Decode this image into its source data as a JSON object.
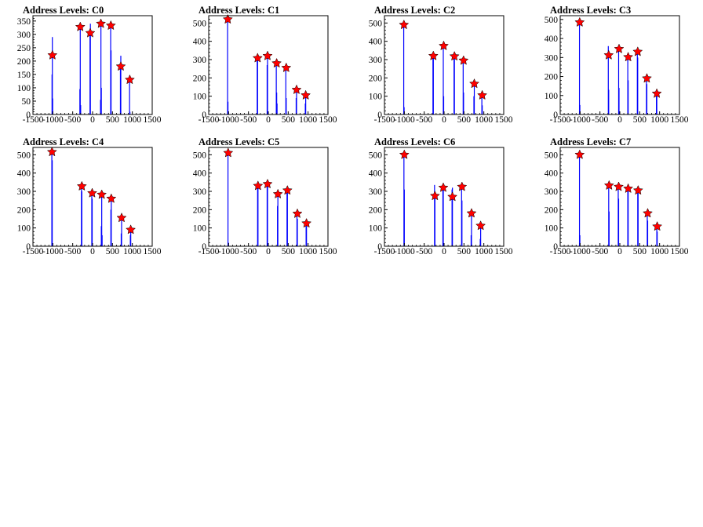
{
  "colors": {
    "histogram": "#0000ff",
    "peak_marker": "#ff0000",
    "axis": "#000000",
    "background": "#ffffff"
  },
  "icon": "star-marker",
  "chart_data": [
    {
      "type": "histogram",
      "title": "Address Levels: C0",
      "xlim": [
        -1500,
        1500
      ],
      "ylim": [
        0,
        370
      ],
      "xticks": [
        -1500,
        -1000,
        -500,
        0,
        500,
        1000,
        1500
      ],
      "yticks": [
        0,
        50,
        100,
        150,
        200,
        250,
        300,
        350
      ],
      "peaks": [
        [
          -1010,
          222
        ],
        [
          -310,
          328
        ],
        [
          -60,
          305
        ],
        [
          210,
          340
        ],
        [
          460,
          333
        ],
        [
          710,
          180
        ],
        [
          935,
          130
        ]
      ],
      "bins": [
        [
          -1020,
          150
        ],
        [
          -1012,
          290
        ],
        [
          -1004,
          60
        ],
        [
          -320,
          95
        ],
        [
          -310,
          330
        ],
        [
          -300,
          35
        ],
        [
          -65,
          310
        ],
        [
          -55,
          340
        ],
        [
          200,
          55
        ],
        [
          210,
          340
        ],
        [
          220,
          100
        ],
        [
          455,
          335
        ],
        [
          465,
          240
        ],
        [
          700,
          185
        ],
        [
          710,
          220
        ],
        [
          930,
          130
        ],
        [
          940,
          10
        ]
      ]
    },
    {
      "type": "histogram",
      "title": "Address Levels: C1",
      "xlim": [
        -1500,
        1500
      ],
      "ylim": [
        0,
        540
      ],
      "xticks": [
        -1500,
        -1000,
        -500,
        0,
        500,
        1000,
        1500
      ],
      "yticks": [
        0,
        100,
        200,
        300,
        400,
        500
      ],
      "peaks": [
        [
          -1020,
          520
        ],
        [
          -270,
          308
        ],
        [
          -20,
          320
        ],
        [
          210,
          280
        ],
        [
          450,
          255
        ],
        [
          710,
          135
        ],
        [
          940,
          105
        ]
      ],
      "bins": [
        [
          -1025,
          520
        ],
        [
          -1015,
          70
        ],
        [
          -280,
          310
        ],
        [
          -270,
          300
        ],
        [
          -30,
          270
        ],
        [
          -20,
          320
        ],
        [
          200,
          280
        ],
        [
          210,
          120
        ],
        [
          220,
          60
        ],
        [
          440,
          260
        ],
        [
          450,
          90
        ],
        [
          700,
          90
        ],
        [
          710,
          135
        ],
        [
          930,
          60
        ],
        [
          940,
          105
        ]
      ]
    },
    {
      "type": "histogram",
      "title": "Address Levels: C2",
      "xlim": [
        -1500,
        1500
      ],
      "ylim": [
        0,
        540
      ],
      "xticks": [
        -1500,
        -1000,
        -500,
        0,
        500,
        1000,
        1500
      ],
      "yticks": [
        0,
        100,
        200,
        300,
        400,
        500
      ],
      "peaks": [
        [
          -1010,
          490
        ],
        [
          -270,
          320
        ],
        [
          -10,
          375
        ],
        [
          260,
          318
        ],
        [
          490,
          295
        ],
        [
          760,
          168
        ],
        [
          960,
          105
        ]
      ],
      "bins": [
        [
          -1015,
          500
        ],
        [
          -1005,
          40
        ],
        [
          -280,
          320
        ],
        [
          -270,
          310
        ],
        [
          -20,
          370
        ],
        [
          -10,
          100
        ],
        [
          250,
          320
        ],
        [
          260,
          310
        ],
        [
          480,
          295
        ],
        [
          490,
          120
        ],
        [
          750,
          100
        ],
        [
          760,
          168
        ],
        [
          950,
          105
        ],
        [
          960,
          50
        ]
      ]
    },
    {
      "type": "histogram",
      "title": "Address Levels: C3",
      "xlim": [
        -1500,
        1500
      ],
      "ylim": [
        0,
        520
      ],
      "xticks": [
        -1500,
        -1000,
        -500,
        0,
        500,
        1000,
        1500
      ],
      "yticks": [
        0,
        100,
        200,
        300,
        400,
        500
      ],
      "peaks": [
        [
          -1010,
          485
        ],
        [
          -280,
          312
        ],
        [
          -20,
          345
        ],
        [
          210,
          302
        ],
        [
          450,
          330
        ],
        [
          680,
          190
        ],
        [
          930,
          110
        ]
      ],
      "bins": [
        [
          -1015,
          485
        ],
        [
          -1005,
          50
        ],
        [
          -290,
          360
        ],
        [
          -280,
          130
        ],
        [
          -30,
          345
        ],
        [
          -20,
          140
        ],
        [
          200,
          300
        ],
        [
          210,
          180
        ],
        [
          440,
          330
        ],
        [
          450,
          300
        ],
        [
          670,
          190
        ],
        [
          680,
          160
        ],
        [
          920,
          110
        ],
        [
          930,
          100
        ]
      ]
    },
    {
      "type": "histogram",
      "title": "Address Levels: C4",
      "xlim": [
        -1500,
        1500
      ],
      "ylim": [
        0,
        540
      ],
      "xticks": [
        -1500,
        -1000,
        -500,
        0,
        500,
        1000,
        1500
      ],
      "yticks": [
        0,
        100,
        200,
        300,
        400,
        500
      ],
      "peaks": [
        [
          -1020,
          515
        ],
        [
          -270,
          328
        ],
        [
          -10,
          290
        ],
        [
          230,
          282
        ],
        [
          470,
          260
        ],
        [
          730,
          155
        ],
        [
          960,
          90
        ]
      ],
      "bins": [
        [
          -1025,
          515
        ],
        [
          -1015,
          470
        ],
        [
          -280,
          325
        ],
        [
          -270,
          300
        ],
        [
          -20,
          290
        ],
        [
          -10,
          260
        ],
        [
          220,
          110
        ],
        [
          230,
          280
        ],
        [
          240,
          60
        ],
        [
          460,
          200
        ],
        [
          470,
          260
        ],
        [
          720,
          70
        ],
        [
          730,
          155
        ],
        [
          950,
          60
        ],
        [
          960,
          90
        ]
      ]
    },
    {
      "type": "histogram",
      "title": "Address Levels: C5",
      "xlim": [
        -1500,
        1500
      ],
      "ylim": [
        0,
        540
      ],
      "xticks": [
        -1500,
        -1000,
        -500,
        0,
        500,
        1000,
        1500
      ],
      "yticks": [
        0,
        100,
        200,
        300,
        400,
        500
      ],
      "peaks": [
        [
          -1010,
          510
        ],
        [
          -260,
          330
        ],
        [
          -20,
          340
        ],
        [
          240,
          285
        ],
        [
          480,
          305
        ],
        [
          730,
          178
        ],
        [
          960,
          125
        ]
      ],
      "bins": [
        [
          -1015,
          510
        ],
        [
          -1005,
          20
        ],
        [
          -270,
          330
        ],
        [
          -260,
          320
        ],
        [
          -30,
          340
        ],
        [
          -20,
          330
        ],
        [
          230,
          220
        ],
        [
          240,
          280
        ],
        [
          470,
          300
        ],
        [
          480,
          305
        ],
        [
          720,
          178
        ],
        [
          730,
          150
        ],
        [
          950,
          125
        ],
        [
          960,
          110
        ]
      ]
    },
    {
      "type": "histogram",
      "title": "Address Levels: C6",
      "xlim": [
        -1500,
        1500
      ],
      "ylim": [
        0,
        540
      ],
      "xticks": [
        -1500,
        -1000,
        -500,
        0,
        500,
        1000,
        1500
      ],
      "yticks": [
        0,
        100,
        200,
        300,
        400,
        500
      ],
      "peaks": [
        [
          -1000,
          500
        ],
        [
          -230,
          275
        ],
        [
          -20,
          320
        ],
        [
          210,
          270
        ],
        [
          450,
          325
        ],
        [
          690,
          180
        ],
        [
          920,
          112
        ]
      ],
      "bins": [
        [
          -1010,
          500
        ],
        [
          -1000,
          310
        ],
        [
          -240,
          335
        ],
        [
          -230,
          280
        ],
        [
          -30,
          315
        ],
        [
          -20,
          320
        ],
        [
          200,
          310
        ],
        [
          210,
          320
        ],
        [
          440,
          330
        ],
        [
          450,
          250
        ],
        [
          680,
          60
        ],
        [
          690,
          180
        ],
        [
          910,
          40
        ],
        [
          920,
          112
        ]
      ]
    },
    {
      "type": "histogram",
      "title": "Address Levels: C7",
      "xlim": [
        -1500,
        1500
      ],
      "ylim": [
        0,
        540
      ],
      "xticks": [
        -1500,
        -1000,
        -500,
        0,
        500,
        1000,
        1500
      ],
      "yticks": [
        0,
        100,
        200,
        300,
        400,
        500
      ],
      "peaks": [
        [
          -1010,
          500
        ],
        [
          -270,
          332
        ],
        [
          -30,
          325
        ],
        [
          210,
          315
        ],
        [
          460,
          305
        ],
        [
          700,
          180
        ],
        [
          940,
          108
        ]
      ],
      "bins": [
        [
          -1015,
          500
        ],
        [
          -1005,
          60
        ],
        [
          -280,
          330
        ],
        [
          -270,
          190
        ],
        [
          -40,
          330
        ],
        [
          -30,
          260
        ],
        [
          200,
          315
        ],
        [
          210,
          300
        ],
        [
          450,
          305
        ],
        [
          460,
          290
        ],
        [
          690,
          180
        ],
        [
          700,
          140
        ],
        [
          930,
          108
        ],
        [
          940,
          80
        ]
      ]
    }
  ]
}
